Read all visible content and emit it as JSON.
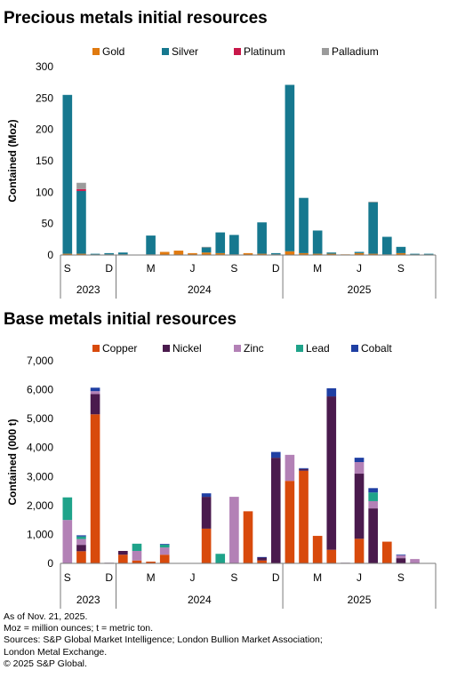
{
  "colors": {
    "Gold": "#e07a10",
    "Silver": "#16788f",
    "Platinum": "#c8184a",
    "Palladium": "#9b9b9b",
    "Copper": "#d84a0c",
    "Nickel": "#4a1a4d",
    "Zinc": "#b381b6",
    "Lead": "#1fa38a",
    "Cobalt": "#1f3fa3"
  },
  "chart_data": [
    {
      "type": "bar",
      "stacked": true,
      "title": "Precious metals initial resources",
      "ylabel": "Contained (Moz)",
      "ylim": [
        0,
        300
      ],
      "yticks": [
        0,
        50,
        100,
        150,
        200,
        250,
        300
      ],
      "legend_position": "top",
      "categories": [
        "Sep 2023",
        "Oct 2023",
        "Nov 2023",
        "Dec 2023",
        "Jan 2024",
        "Feb 2024",
        "Mar 2024",
        "Apr 2024",
        "May 2024",
        "Jun 2024",
        "Jul 2024",
        "Aug 2024",
        "Sep 2024",
        "Oct 2024",
        "Nov 2024",
        "Dec 2024",
        "Jan 2025",
        "Feb 2025",
        "Mar 2025",
        "Apr 2025",
        "May 2025",
        "Jun 2025",
        "Jul 2025",
        "Aug 2025",
        "Sep 2025",
        "Oct 2025",
        "Nov 2025"
      ],
      "month_ticks": [
        {
          "index": 0,
          "label": "S"
        },
        {
          "index": 3,
          "label": "D"
        },
        {
          "index": 6,
          "label": "M"
        },
        {
          "index": 9,
          "label": "J"
        },
        {
          "index": 12,
          "label": "S"
        },
        {
          "index": 15,
          "label": "D"
        },
        {
          "index": 18,
          "label": "M"
        },
        {
          "index": 21,
          "label": "J"
        },
        {
          "index": 24,
          "label": "S"
        }
      ],
      "year_groups": [
        {
          "label": "2023",
          "start": 0,
          "end": 3
        },
        {
          "label": "2024",
          "start": 4,
          "end": 15
        },
        {
          "label": "2025",
          "start": 16,
          "end": 26
        }
      ],
      "series": [
        {
          "name": "Gold",
          "values": [
            2,
            2,
            1,
            1,
            1,
            0,
            1,
            5,
            7,
            3,
            4,
            3,
            1,
            3,
            2,
            1,
            6,
            3,
            2,
            2,
            1,
            3,
            2,
            1,
            3,
            1,
            1
          ]
        },
        {
          "name": "Silver",
          "values": [
            253,
            100,
            1,
            2,
            3,
            0,
            30,
            0,
            0,
            0,
            8,
            33,
            31,
            0,
            50,
            2,
            265,
            88,
            37,
            2,
            0,
            2,
            82,
            28,
            10,
            1,
            1
          ]
        },
        {
          "name": "Platinum",
          "values": [
            0,
            3,
            0,
            0,
            0,
            0,
            0,
            0,
            0,
            0,
            0,
            0,
            0,
            0,
            0,
            0,
            0,
            0,
            0,
            0,
            0,
            0,
            0,
            0,
            0,
            0,
            0
          ]
        },
        {
          "name": "Palladium",
          "values": [
            0,
            10,
            0,
            0,
            0,
            0,
            0,
            0,
            0,
            0,
            1,
            0,
            0,
            0,
            0,
            0,
            0,
            0,
            0,
            0,
            0,
            0,
            1,
            0,
            0,
            0,
            0
          ]
        }
      ]
    },
    {
      "type": "bar",
      "stacked": true,
      "title": "Base metals initial resources",
      "ylabel": "Contained (000 t)",
      "ylim": [
        0,
        7000
      ],
      "yticks": [
        0,
        1000,
        2000,
        3000,
        4000,
        5000,
        6000,
        7000
      ],
      "ytick_labels": [
        "0",
        "1,000",
        "2,000",
        "3,000",
        "4,000",
        "5,000",
        "6,000",
        "7,000"
      ],
      "legend_position": "top",
      "categories": [
        "Sep 2023",
        "Oct 2023",
        "Nov 2023",
        "Dec 2023",
        "Jan 2024",
        "Feb 2024",
        "Mar 2024",
        "Apr 2024",
        "May 2024",
        "Jun 2024",
        "Jul 2024",
        "Aug 2024",
        "Sep 2024",
        "Oct 2024",
        "Nov 2024",
        "Dec 2024",
        "Jan 2025",
        "Feb 2025",
        "Mar 2025",
        "Apr 2025",
        "May 2025",
        "Jun 2025",
        "Jul 2025",
        "Aug 2025",
        "Sep 2025",
        "Oct 2025",
        "Nov 2025"
      ],
      "month_ticks": [
        {
          "index": 0,
          "label": "S"
        },
        {
          "index": 3,
          "label": "D"
        },
        {
          "index": 6,
          "label": "M"
        },
        {
          "index": 9,
          "label": "J"
        },
        {
          "index": 12,
          "label": "S"
        },
        {
          "index": 15,
          "label": "D"
        },
        {
          "index": 18,
          "label": "M"
        },
        {
          "index": 21,
          "label": "J"
        },
        {
          "index": 24,
          "label": "S"
        }
      ],
      "year_groups": [
        {
          "label": "2023",
          "start": 0,
          "end": 3
        },
        {
          "label": "2024",
          "start": 4,
          "end": 15
        },
        {
          "label": "2025",
          "start": 16,
          "end": 26
        }
      ],
      "series": [
        {
          "name": "Copper",
          "values": [
            0,
            420,
            5150,
            0,
            300,
            100,
            60,
            300,
            0,
            0,
            1200,
            0,
            0,
            1800,
            100,
            0,
            2850,
            3200,
            950,
            470,
            0,
            850,
            0,
            750,
            0,
            0,
            0
          ]
        },
        {
          "name": "Nickel",
          "values": [
            0,
            220,
            700,
            20,
            130,
            0,
            0,
            0,
            0,
            0,
            1100,
            0,
            0,
            0,
            100,
            3650,
            0,
            60,
            0,
            5300,
            20,
            2250,
            1900,
            0,
            180,
            0,
            0
          ]
        },
        {
          "name": "Zinc",
          "values": [
            1500,
            200,
            100,
            0,
            0,
            330,
            0,
            250,
            0,
            0,
            0,
            0,
            2300,
            0,
            0,
            0,
            900,
            0,
            0,
            0,
            0,
            400,
            250,
            0,
            100,
            150,
            0
          ]
        },
        {
          "name": "Lead",
          "values": [
            780,
            90,
            0,
            0,
            0,
            250,
            0,
            100,
            0,
            0,
            0,
            330,
            0,
            0,
            0,
            0,
            0,
            0,
            0,
            0,
            0,
            0,
            300,
            0,
            0,
            0,
            0
          ]
        },
        {
          "name": "Cobalt",
          "values": [
            0,
            40,
            120,
            0,
            0,
            0,
            0,
            20,
            0,
            0,
            120,
            0,
            0,
            0,
            20,
            200,
            0,
            30,
            0,
            280,
            0,
            150,
            150,
            0,
            20,
            0,
            0
          ]
        }
      ]
    }
  ],
  "footnotes": {
    "line1": "As of Nov. 21, 2025.",
    "line2": "Moz = million ounces; t = metric ton.",
    "line3": "Sources: S&P Global Market Intelligence; London Bullion Market Association;",
    "line4": "London Metal Exchange.",
    "line5": "© 2025 S&P Global."
  }
}
